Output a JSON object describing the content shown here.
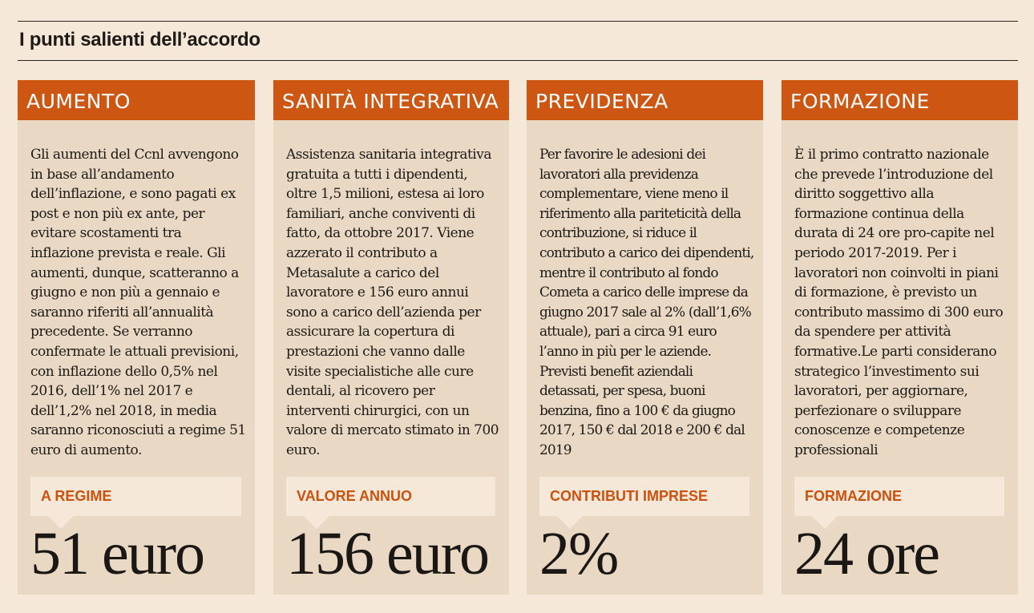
{
  "title": "I punti salienti dell’accordo",
  "colors": {
    "accent": "#cd5613",
    "card": "#e8d8c4",
    "background": "#f6e8d8"
  },
  "cards": [
    {
      "heading": "AUMENTO",
      "text": "Gli aumenti del Ccnl avvengono in base all’andamento dell’inflazione, e sono pagati ex post e non più ex ante, per evitare scostamenti tra inflazione prevista e reale. Gli aumenti, dunque, scatteranno a giugno e non più a gennaio e saranno riferiti all’annualità precedente. Se verranno confermate le attuali previsioni, con inflazione dello 0,5% nel 2016, dell’1% nel 2017 e dell’1,2% nel 2018, in media saranno riconosciuti a regime 51 euro di aumento.",
      "label": "A REGIME",
      "value": "51 euro"
    },
    {
      "heading": "SANITÀ INTEGRATIVA",
      "text": "Assistenza sanitaria integrativa gratuita a tutti i dipendenti, oltre 1,5 milioni, estesa ai loro familiari, anche conviventi di fatto, da ottobre 2017. Viene azzerato il contributo a Metasalute a carico del lavoratore e 156 euro annui sono a carico dell’azienda per assicurare la copertura di prestazioni che vanno dalle visite specialistiche alle cure dentali, al ricovero per interventi chirurgici, con un valore di mercato stimato in 700 euro.",
      "label": "VALORE ANNUO",
      "value": "156 euro"
    },
    {
      "heading": "PREVIDENZA",
      "text": "Per favorire le adesioni dei lavoratori alla previdenza complementare, viene meno il riferimento alla pariteticità della contribuzione, si riduce il contributo a carico dei dipendenti, mentre il contributo al fondo Cometa a carico delle imprese da giugno 2017 sale al 2% (dall’1,6% attuale), pari a circa 91 euro l’anno in più per le aziende. Previsti benefit aziendali detassati, per spesa, buoni benzina, fino a 100 € da giugno 2017, 150 € dal 2018 e 200 € dal 2019",
      "label": "CONTRIBUTI IMPRESE",
      "value": "2%"
    },
    {
      "heading": "FORMAZIONE",
      "text": "È il primo contratto nazionale che prevede l’introduzione del diritto soggettivo alla formazione continua della durata di 24 ore pro-capite nel periodo 2017-2019. Per i lavoratori non coinvolti in piani di formazione, è previsto un contributo massimo di 300 euro da spendere per attività formative.Le parti considerano strategico l’investimento sui lavoratori, per aggiornare, perfezionare o sviluppare conoscenze e competenze professionali",
      "label": "FORMAZIONE",
      "value": "24 ore"
    }
  ]
}
